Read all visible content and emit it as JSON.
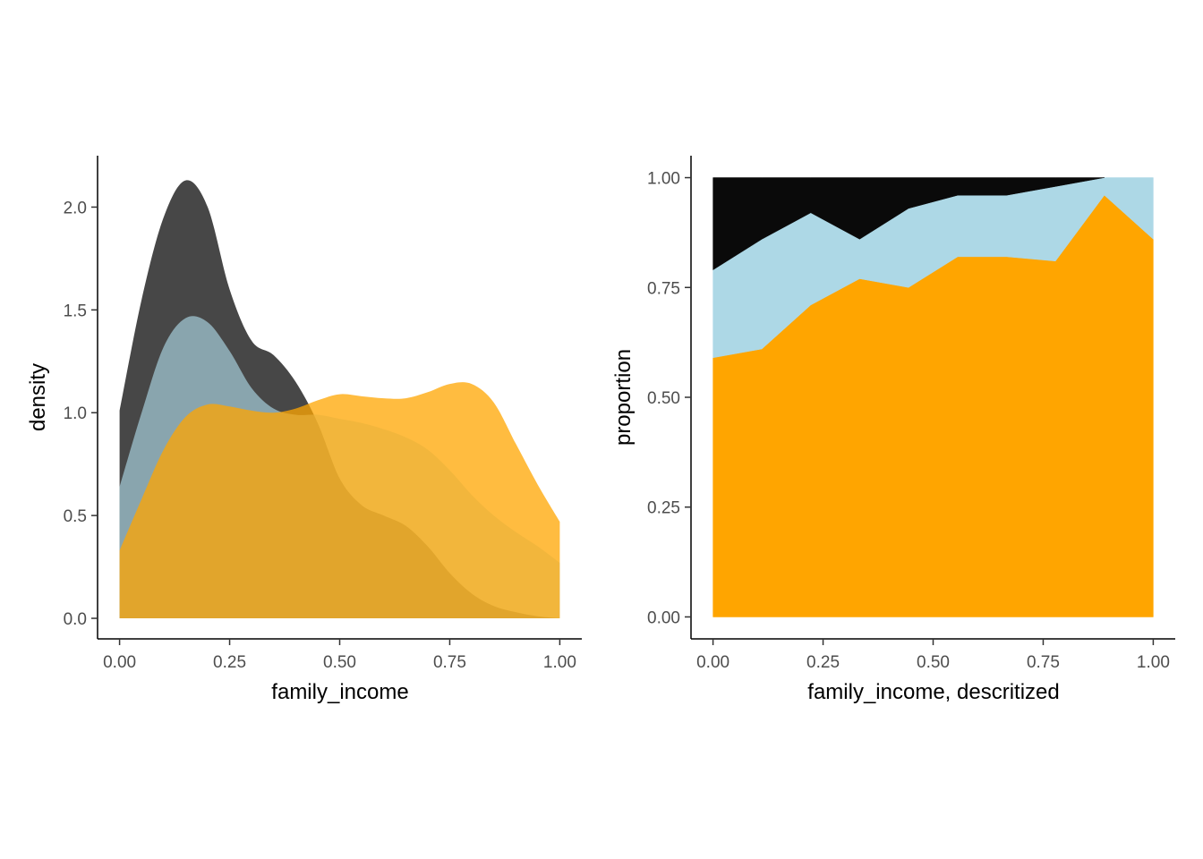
{
  "chart_data": [
    {
      "type": "area",
      "subtype": "overlapping-density",
      "xlabel": "family_income",
      "ylabel": "density",
      "xlim": [
        -0.05,
        1.05
      ],
      "ylim": [
        -0.1,
        2.25
      ],
      "x_ticks": [
        "0.00",
        "0.25",
        "0.50",
        "0.75",
        "1.00"
      ],
      "y_ticks": [
        "0.0",
        "0.5",
        "1.0",
        "1.5",
        "2.0"
      ],
      "grid": false,
      "legend": "none",
      "series": [
        {
          "color": "#333333",
          "opacity": 0.9,
          "x": [
            0,
            0.05,
            0.1,
            0.15,
            0.2,
            0.25,
            0.3,
            0.35,
            0.4,
            0.45,
            0.5,
            0.55,
            0.6,
            0.65,
            0.7,
            0.75,
            0.8,
            0.85,
            0.9,
            0.95,
            1.0
          ],
          "y": [
            1.01,
            1.55,
            1.95,
            2.13,
            2.0,
            1.6,
            1.35,
            1.28,
            1.15,
            0.95,
            0.68,
            0.55,
            0.5,
            0.45,
            0.35,
            0.22,
            0.12,
            0.06,
            0.03,
            0.01,
            0.0
          ]
        },
        {
          "color": "#add8e6",
          "opacity": 0.65,
          "x": [
            0,
            0.05,
            0.1,
            0.15,
            0.2,
            0.25,
            0.3,
            0.35,
            0.4,
            0.45,
            0.5,
            0.55,
            0.6,
            0.65,
            0.7,
            0.75,
            0.8,
            0.85,
            0.9,
            0.95,
            1.0
          ],
          "y": [
            0.64,
            1.0,
            1.32,
            1.46,
            1.44,
            1.3,
            1.12,
            1.02,
            0.99,
            0.99,
            0.97,
            0.95,
            0.92,
            0.88,
            0.82,
            0.72,
            0.6,
            0.5,
            0.42,
            0.35,
            0.27
          ]
        },
        {
          "color": "#ffa500",
          "opacity": 0.75,
          "x": [
            0,
            0.05,
            0.1,
            0.15,
            0.2,
            0.25,
            0.3,
            0.35,
            0.4,
            0.45,
            0.5,
            0.55,
            0.6,
            0.65,
            0.7,
            0.75,
            0.8,
            0.85,
            0.9,
            0.95,
            1.0
          ],
          "y": [
            0.33,
            0.58,
            0.82,
            0.98,
            1.04,
            1.03,
            1.01,
            1.0,
            1.02,
            1.06,
            1.09,
            1.08,
            1.07,
            1.07,
            1.1,
            1.14,
            1.14,
            1.05,
            0.85,
            0.65,
            0.47
          ]
        }
      ]
    },
    {
      "type": "area",
      "subtype": "stacked-proportion",
      "xlabel": "family_income, descritized",
      "ylabel": "proportion",
      "xlim": [
        -0.05,
        1.05
      ],
      "ylim": [
        -0.05,
        1.05
      ],
      "x_ticks": [
        "0.00",
        "0.25",
        "0.50",
        "0.75",
        "1.00"
      ],
      "y_ticks": [
        "0.00",
        "0.25",
        "0.50",
        "0.75",
        "1.00"
      ],
      "grid": false,
      "legend": "none",
      "x": [
        0,
        0.111,
        0.222,
        0.333,
        0.444,
        0.556,
        0.667,
        0.778,
        0.889,
        1.0
      ],
      "series": [
        {
          "color": "#ffa500",
          "values": [
            0.59,
            0.61,
            0.71,
            0.77,
            0.75,
            0.82,
            0.82,
            0.81,
            0.96,
            0.86
          ]
        },
        {
          "color": "#add8e6",
          "values": [
            0.2,
            0.25,
            0.21,
            0.09,
            0.18,
            0.14,
            0.14,
            0.17,
            0.04,
            0.14
          ]
        },
        {
          "color": "#0a0a0a",
          "values": [
            0.21,
            0.14,
            0.08,
            0.14,
            0.07,
            0.04,
            0.04,
            0.02,
            0.0,
            0.0
          ]
        }
      ]
    }
  ]
}
